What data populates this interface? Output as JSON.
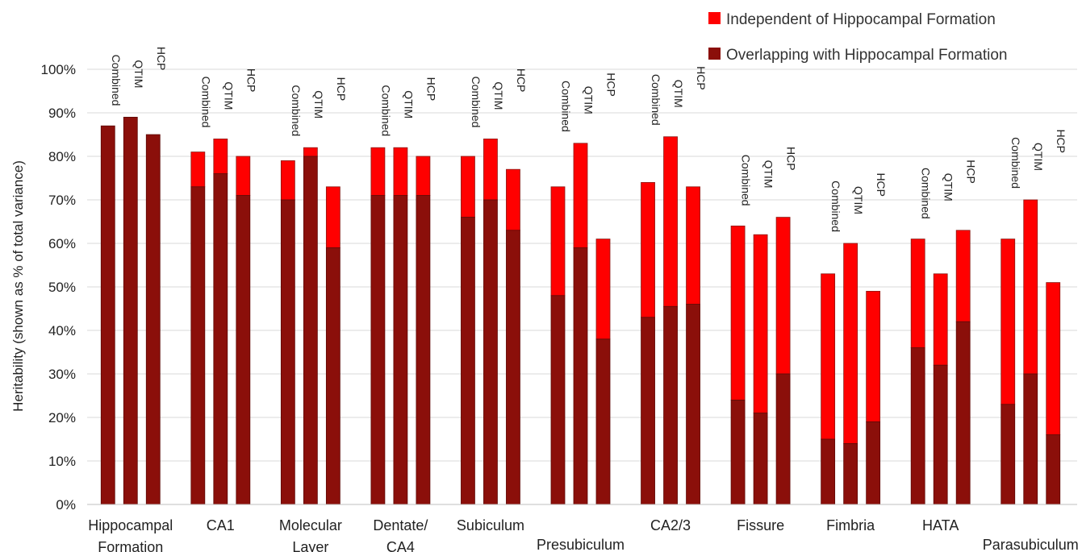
{
  "chart_data": {
    "type": "bar",
    "stacked": true,
    "ylabel": "Heritability (shown as % of total variance)",
    "ylim": [
      0,
      100
    ],
    "yticks": [
      "0%",
      "10%",
      "20%",
      "30%",
      "40%",
      "50%",
      "60%",
      "70%",
      "80%",
      "90%",
      "100%"
    ],
    "grid": true,
    "legend_position": "top-right",
    "bar_labels": [
      "Combined",
      "QTIM",
      "HCP"
    ],
    "series": [
      {
        "name": "Independent of Hippocampal Formation",
        "color": "#ff0000"
      },
      {
        "name": "Overlapping with Hippocampal Formation",
        "color": "#8b0f0a"
      }
    ],
    "groups": [
      {
        "label": "Hippocampal Formation",
        "label_lines": [
          "Hippocampal",
          "Formation"
        ],
        "bars": [
          {
            "total": 87,
            "overlap": 87
          },
          {
            "total": 89,
            "overlap": 89
          },
          {
            "total": 85,
            "overlap": 85
          }
        ]
      },
      {
        "label": "CA1",
        "label_lines": [
          "CA1"
        ],
        "bars": [
          {
            "total": 81,
            "overlap": 73
          },
          {
            "total": 84,
            "overlap": 76
          },
          {
            "total": 80,
            "overlap": 71
          }
        ]
      },
      {
        "label": "Molecular Layer",
        "label_lines": [
          "Molecular",
          "Layer"
        ],
        "bars": [
          {
            "total": 79,
            "overlap": 70
          },
          {
            "total": 82,
            "overlap": 80
          },
          {
            "total": 73,
            "overlap": 59
          }
        ]
      },
      {
        "label": "Dentate/ CA4",
        "label_lines": [
          "Dentate/",
          "CA4"
        ],
        "bars": [
          {
            "total": 82,
            "overlap": 71
          },
          {
            "total": 82,
            "overlap": 71
          },
          {
            "total": 80,
            "overlap": 71
          }
        ]
      },
      {
        "label": "Subiculum",
        "label_lines": [
          "Subiculum"
        ],
        "bars": [
          {
            "total": 80,
            "overlap": 66
          },
          {
            "total": 84,
            "overlap": 70
          },
          {
            "total": 77,
            "overlap": 63
          }
        ]
      },
      {
        "label": "Presubiculum",
        "label_lines": [
          "Presubiculum"
        ],
        "bars": [
          {
            "total": 73,
            "overlap": 48
          },
          {
            "total": 83,
            "overlap": 59
          },
          {
            "total": 61,
            "overlap": 38
          }
        ]
      },
      {
        "label": "CA2/3",
        "label_lines": [
          "CA2/3"
        ],
        "bars": [
          {
            "total": 74,
            "overlap": 43
          },
          {
            "total": 84.5,
            "overlap": 45.5
          },
          {
            "total": 73,
            "overlap": 46
          }
        ]
      },
      {
        "label": "Fissure",
        "label_lines": [
          "Fissure"
        ],
        "bars": [
          {
            "total": 64,
            "overlap": 24
          },
          {
            "total": 62,
            "overlap": 21
          },
          {
            "total": 66,
            "overlap": 30
          }
        ]
      },
      {
        "label": "Fimbria",
        "label_lines": [
          "Fimbria"
        ],
        "bars": [
          {
            "total": 53,
            "overlap": 15
          },
          {
            "total": 60,
            "overlap": 14
          },
          {
            "total": 49,
            "overlap": 19
          }
        ]
      },
      {
        "label": "HATA",
        "label_lines": [
          "HATA"
        ],
        "bars": [
          {
            "total": 61,
            "overlap": 36
          },
          {
            "total": 53,
            "overlap": 32
          },
          {
            "total": 63,
            "overlap": 42
          }
        ]
      },
      {
        "label": "Parasubiculum",
        "label_lines": [
          "Parasubiculum"
        ],
        "bars": [
          {
            "total": 61,
            "overlap": 23
          },
          {
            "total": 70,
            "overlap": 30
          },
          {
            "total": 51,
            "overlap": 16
          }
        ]
      }
    ]
  }
}
